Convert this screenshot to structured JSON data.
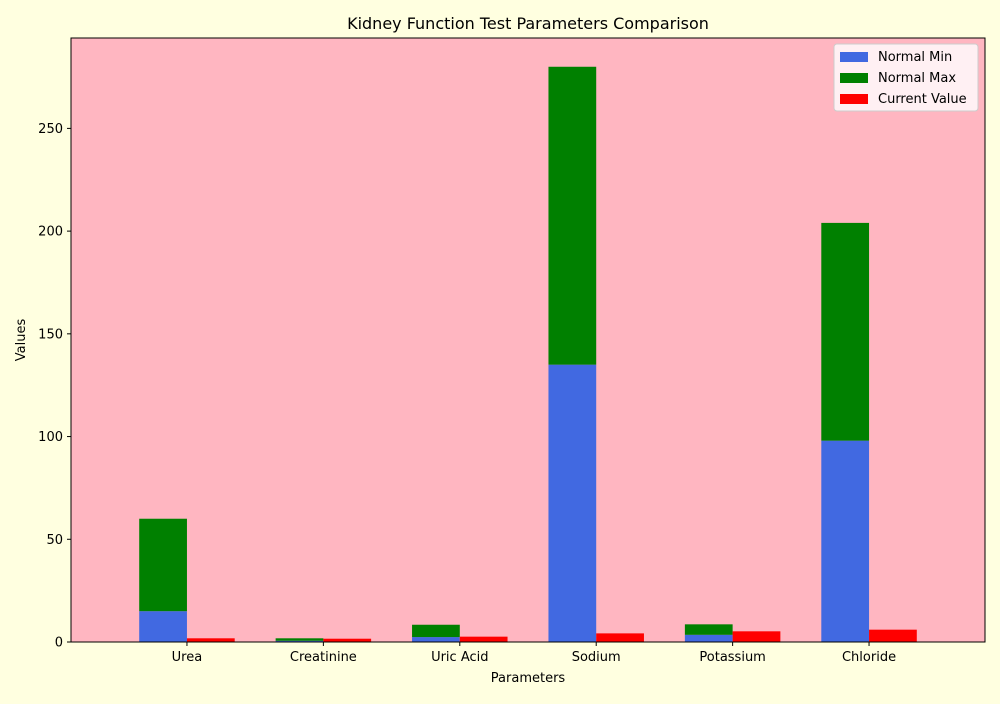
{
  "colors": {
    "page_background": "#ffffe0",
    "plot_background": "#ffb6c1",
    "normal_min": "#4169e1",
    "normal_max": "#008000",
    "current_value": "#ff0000"
  },
  "chart_data": {
    "type": "bar",
    "title": "Kidney Function Test Parameters Comparison",
    "xlabel": "Parameters",
    "ylabel": "Values",
    "categories": [
      "Urea",
      "Creatinine",
      "Uric Acid",
      "Sodium",
      "Potassium",
      "Chloride"
    ],
    "ylim": [
      0,
      294
    ],
    "yticks": [
      0,
      50,
      100,
      150,
      200,
      250
    ],
    "grid": false,
    "legend_position": "top-right",
    "stacked_pair": {
      "bottom_series": "Normal Min",
      "top_series": "Normal Max",
      "side_series": "Current Value"
    },
    "series": [
      {
        "name": "Normal Min",
        "color": "#4169e1",
        "values": [
          15,
          0.6,
          2.4,
          135,
          3.5,
          98
        ]
      },
      {
        "name": "Normal Max",
        "color": "#008000",
        "values": [
          45,
          1.2,
          6.0,
          145,
          5.1,
          106
        ]
      },
      {
        "name": "Current Value",
        "color": "#ff0000",
        "values": [
          1.8,
          1.6,
          2.6,
          4.2,
          5.2,
          6.0
        ]
      }
    ]
  }
}
